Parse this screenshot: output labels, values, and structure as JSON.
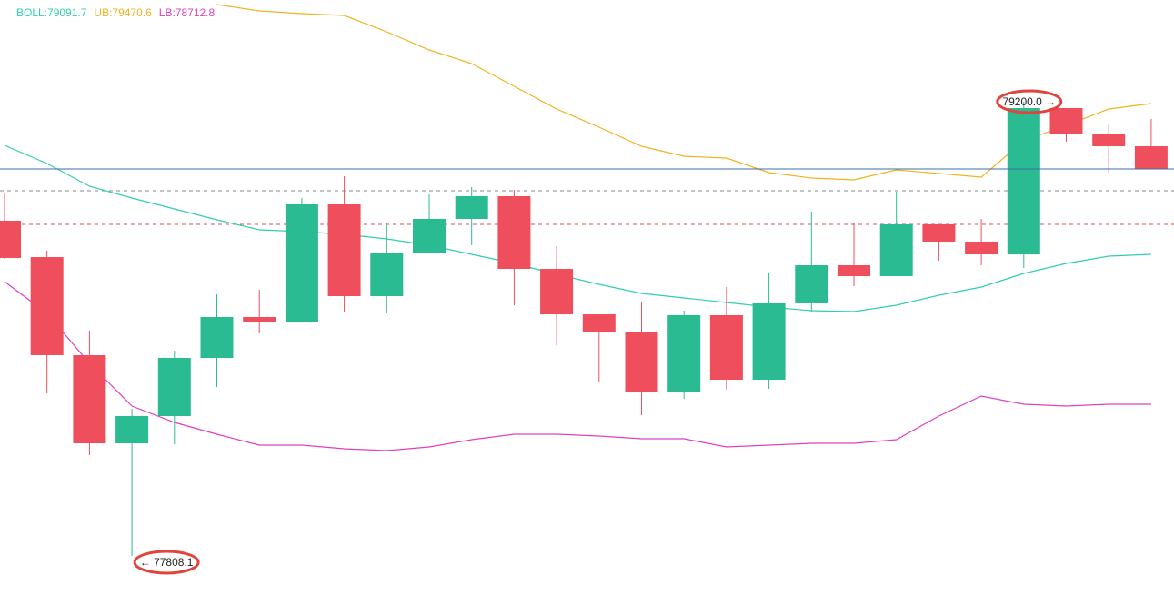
{
  "chart_data": {
    "type": "candlestick",
    "up_color": "#2bbb93",
    "down_color": "#ef4f5c",
    "ylim": [
      77657.7,
      79511.8
    ],
    "open": [
      78835.3,
      78723.9,
      78423.3,
      78153.2,
      78236.7,
      78414.9,
      78540.2,
      78523.5,
      78885.4,
      78604.2,
      78735.1,
      78840.9,
      78910.5,
      78687.7,
      78548.5,
      78492.9,
      78309.1,
      78545.8,
      78348.1,
      78582.0,
      78698.9,
      78665.5,
      78824.2,
      78771.3,
      78732.3,
      79180.5,
      79099.8,
      79063.6
    ],
    "high": [
      78921.6,
      78743.4,
      78498.4,
      78259.0,
      78437.2,
      78609.8,
      78623.7,
      78904.9,
      78971.7,
      78826.9,
      78916.0,
      78938.3,
      78930.0,
      78757.3,
      78548.5,
      78587.5,
      78559.7,
      78632.1,
      78673.8,
      78863.1,
      78829.7,
      78924.4,
      78824.2,
      78840.9,
      79200.0,
      79180.5,
      79133.2,
      79147.1
    ],
    "low": [
      78718.4,
      78306.3,
      78117.0,
      77808.1,
      78150.4,
      78325.8,
      78490.1,
      78523.5,
      78556.9,
      78551.3,
      78735.1,
      78760.1,
      78576.4,
      78453.9,
      78339.7,
      78239.5,
      78289.6,
      78317.5,
      78320.3,
      78554.1,
      78634.8,
      78665.5,
      78712.8,
      78698.9,
      78690.5,
      79077.5,
      78982.8,
      78994.0
    ],
    "close": [
      78721.2,
      78423.3,
      78153.2,
      78236.7,
      78414.9,
      78540.2,
      78523.5,
      78885.4,
      78604.2,
      78735.1,
      78840.9,
      78910.5,
      78687.7,
      78548.5,
      78492.9,
      78309.1,
      78545.8,
      78348.1,
      78582.0,
      78698.9,
      78665.5,
      78824.2,
      78771.3,
      78732.3,
      79180.5,
      79099.8,
      79063.6,
      78994.0
    ],
    "series": [
      {
        "name": "BOLL:79091.7",
        "color": "#2fcfb0",
        "values": [
          79066.4,
          79010.7,
          78941.1,
          78904.9,
          78871.5,
          78838.1,
          78807.5,
          78801.9,
          78793.5,
          78779.6,
          78760.1,
          78732.3,
          78704.4,
          78671.0,
          78640.4,
          78612.6,
          78598.7,
          78584.7,
          78570.8,
          78559.7,
          78556.9,
          78576.4,
          78607.0,
          78632.1,
          78673.8,
          78704.4,
          78726.7,
          78732.3
        ]
      },
      {
        "name": "UB:79470.6",
        "color": "#f0b323",
        "values": [
          null,
          null,
          null,
          null,
          null,
          79497.9,
          79478.4,
          79470.0,
          79464.5,
          79414.4,
          79358.7,
          79316.9,
          79247.3,
          79177.7,
          79122.0,
          79063.6,
          79033.0,
          79027.4,
          78982.8,
          78966.1,
          78960.6,
          78991.2,
          78980.1,
          78968.9,
          79080.3,
          79127.6,
          79177.7,
          79194.4
        ]
      },
      {
        "name": "LB:78712.8",
        "color": "#e040c0",
        "values": [
          78648.8,
          78551.3,
          78398.2,
          78267.4,
          78217.2,
          78181.1,
          78147.6,
          78147.6,
          78136.5,
          78130.9,
          78142.1,
          78164.4,
          78181.1,
          78181.1,
          78175.5,
          78167.1,
          78167.1,
          78142.1,
          78147.6,
          78153.2,
          78153.2,
          78164.4,
          78236.7,
          78298.0,
          78272.9,
          78267.4,
          78272.9,
          78272.9
        ]
      }
    ],
    "annotations": [
      {
        "value": 79200.0,
        "label": "79200.0 →"
      },
      {
        "value": 77808.1,
        "label": "← 77808.1"
      }
    ]
  }
}
